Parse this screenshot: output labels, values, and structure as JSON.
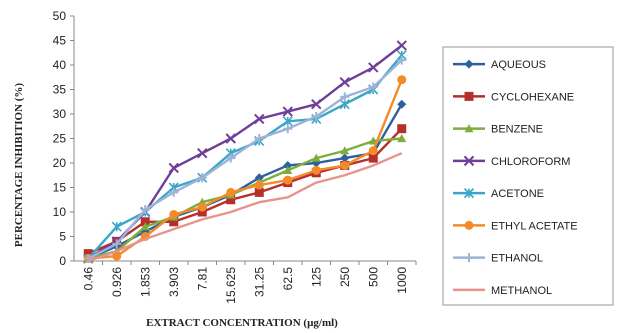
{
  "chart_data": {
    "type": "line",
    "title": "",
    "xlabel": "EXTRACT CONCENTRATION (µg/ml)",
    "ylabel": "PERCENTAGE INHIBITION (%)",
    "ylim": [
      0,
      50
    ],
    "y_ticks": [
      "0",
      "5",
      "10",
      "15",
      "20",
      "25",
      "30",
      "35",
      "40",
      "45",
      "50"
    ],
    "categories": [
      "0.46",
      "0.926",
      "1.853",
      "3.903",
      "7.81",
      "15.625",
      "31.25",
      "62.5",
      "125",
      "250",
      "500",
      "1000"
    ],
    "grid": false,
    "legend_position": "right",
    "series": [
      {
        "name": "AQUEOUS",
        "color": "#2e5f9e",
        "marker": "diamond",
        "values": [
          0.5,
          3,
          6,
          9,
          11,
          13.5,
          17,
          19.5,
          20,
          21,
          22,
          32
        ]
      },
      {
        "name": "CYCLOHEXANE",
        "color": "#b5302b",
        "marker": "square",
        "values": [
          1.5,
          4,
          8,
          8,
          10,
          12.5,
          14,
          16,
          18,
          19.5,
          21,
          27
        ]
      },
      {
        "name": "BENZENE",
        "color": "#7dae3c",
        "marker": "triangle",
        "values": [
          0.5,
          2,
          7,
          9,
          12,
          13.5,
          16,
          18.5,
          21,
          22.5,
          24.5,
          25
        ]
      },
      {
        "name": "CHLOROFORM",
        "color": "#6f3f98",
        "marker": "x",
        "values": [
          0.5,
          4,
          10,
          19,
          22,
          25,
          29,
          30.5,
          32,
          36.5,
          39.5,
          44
        ]
      },
      {
        "name": "ACETONE",
        "color": "#3aa6c8",
        "marker": "asterisk",
        "values": [
          0.5,
          7,
          10,
          15,
          17,
          22,
          24.5,
          28.5,
          29,
          32,
          35,
          42
        ]
      },
      {
        "name": "ETHYL ACETATE",
        "color": "#f28c28",
        "marker": "circle",
        "values": [
          0.5,
          1,
          5,
          9.5,
          11,
          14,
          15.5,
          16.5,
          18.5,
          19.5,
          22.5,
          37
        ]
      },
      {
        "name": "ETHANOL",
        "color": "#9db4d6",
        "marker": "plus",
        "values": [
          0.5,
          3.5,
          10.5,
          14,
          17,
          21,
          25,
          27,
          29.5,
          33.5,
          35.5,
          41
        ]
      },
      {
        "name": "METHANOL",
        "color": "#e8938c",
        "marker": "none",
        "values": [
          0,
          2,
          4.5,
          6.5,
          8.5,
          10,
          12,
          13,
          16,
          17.5,
          19.5,
          22
        ]
      }
    ]
  }
}
